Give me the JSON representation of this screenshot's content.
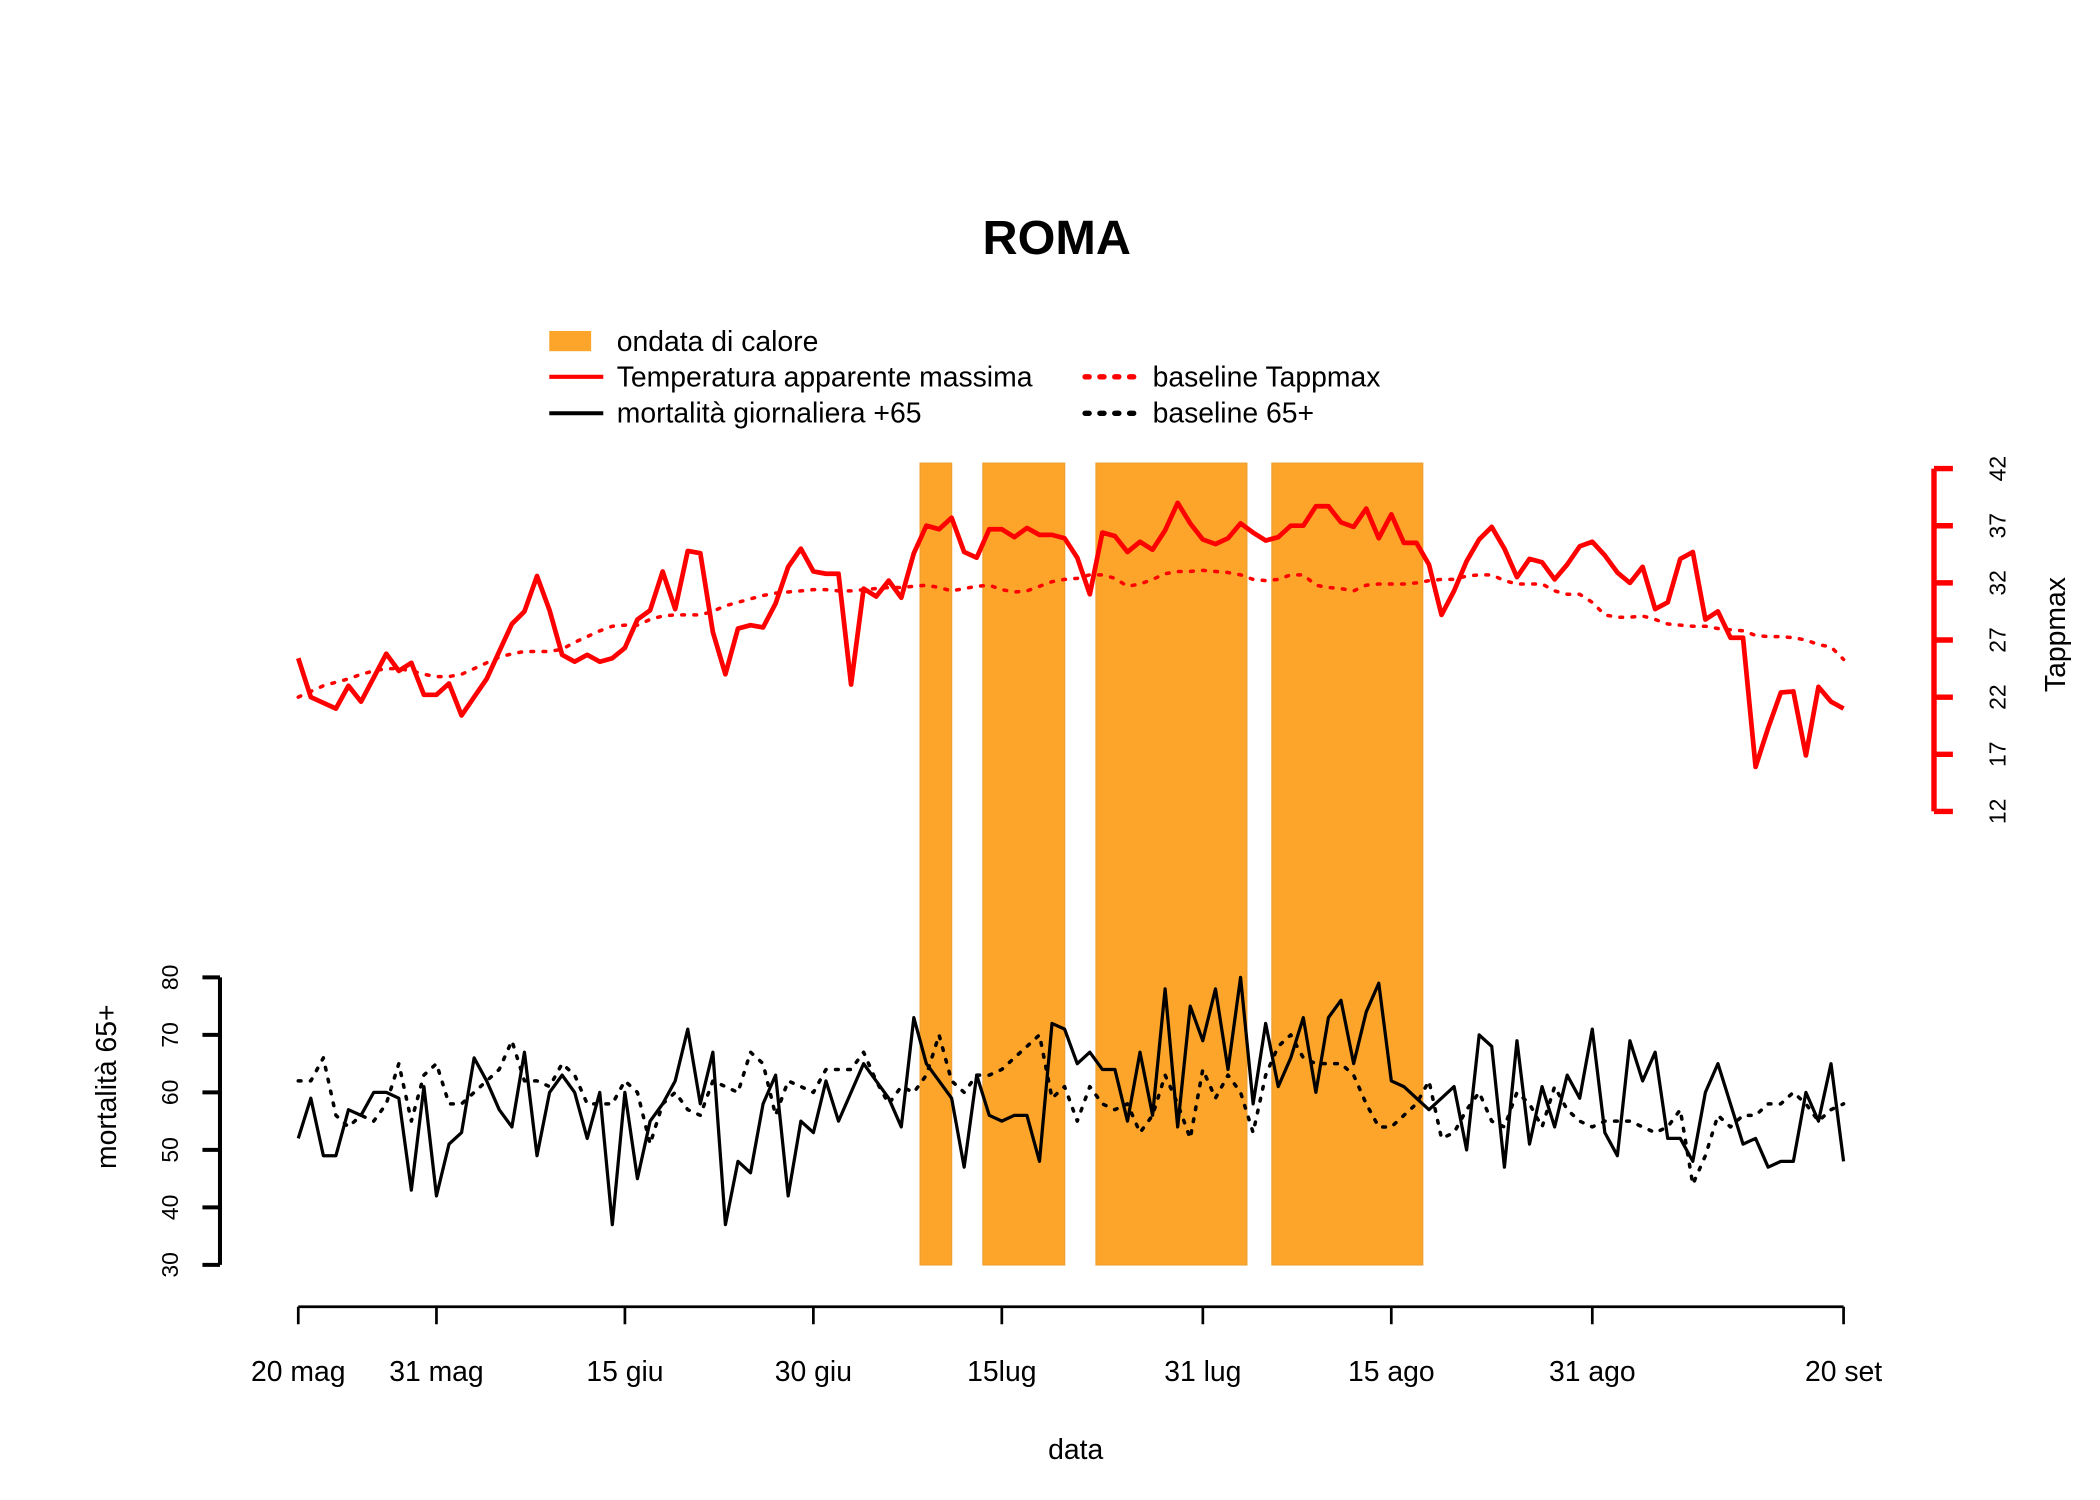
{
  "chart_data": {
    "type": "line",
    "title": "ROMA",
    "xlabel": "data",
    "ylabel_left": "mortalità 65+",
    "ylabel_right": "Tappmax",
    "x_unit": "days since 20 mag",
    "x_range": [
      0,
      123
    ],
    "x_ticks": [
      {
        "day": 0,
        "label": "20 mag"
      },
      {
        "day": 11,
        "label": "31 mag"
      },
      {
        "day": 26,
        "label": "15 giu"
      },
      {
        "day": 41,
        "label": "30 giu"
      },
      {
        "day": 56,
        "label": "15lug"
      },
      {
        "day": 72,
        "label": "31 lug"
      },
      {
        "day": 87,
        "label": "15 ago"
      },
      {
        "day": 103,
        "label": "31 ago"
      },
      {
        "day": 123,
        "label": "20 set"
      }
    ],
    "left_axis": {
      "range": [
        30,
        80
      ],
      "ticks": [
        "30",
        "40",
        "50",
        "60",
        "70",
        "80"
      ]
    },
    "right_axis": {
      "range": [
        12,
        42
      ],
      "ticks": [
        "12",
        "17",
        "22",
        "27",
        "32",
        "37",
        "42"
      ],
      "color": "#ff0000"
    },
    "legend": {
      "position": "top-center",
      "items": [
        {
          "label": "ondata di calore",
          "kind": "fill",
          "color": "#fca52a"
        },
        {
          "label": "Temperatura apparente massima",
          "kind": "solid",
          "color": "#ff0000"
        },
        {
          "label": "mortalità giornaliera +65",
          "kind": "solid",
          "color": "#000000"
        },
        {
          "label": "baseline Tappmax",
          "kind": "dotted",
          "color": "#ff0000"
        },
        {
          "label": "baseline 65+",
          "kind": "dotted",
          "color": "#000000"
        }
      ]
    },
    "heatwaves": [
      [
        49.5,
        52
      ],
      [
        54.5,
        61
      ],
      [
        63.5,
        75.5
      ],
      [
        77.5,
        89.5
      ]
    ],
    "heatwave_color": "#fca52a",
    "series": [
      {
        "name": "Temperatura apparente massima",
        "axis": "right",
        "style": "solid",
        "color": "#ff0000",
        "values": [
          25.4,
          22,
          21.5,
          21,
          23,
          21.6,
          23.7,
          25.8,
          24.3,
          25,
          22.2,
          22.2,
          23.2,
          20.4,
          22,
          23.6,
          26,
          28.4,
          29.5,
          32.6,
          29.6,
          25.7,
          25.1,
          25.7,
          25.1,
          25.4,
          26.3,
          28.8,
          29.6,
          33,
          29.7,
          34.8,
          34.6,
          27.7,
          24,
          28,
          28.3,
          28.1,
          30.2,
          33.4,
          35,
          33,
          32.8,
          32.8,
          23.1,
          31.5,
          30.8,
          32.2,
          30.7,
          34.6,
          37,
          36.7,
          37.7,
          34.7,
          34.2,
          36.7,
          36.7,
          36,
          36.8,
          36.2,
          36.2,
          35.9,
          34.2,
          31,
          36.4,
          36.1,
          34.7,
          35.6,
          34.9,
          36.6,
          39,
          37.2,
          35.8,
          35.4,
          35.9,
          37.2,
          36.4,
          35.7,
          36,
          37,
          37,
          38.7,
          38.7,
          37.3,
          36.9,
          38.5,
          35.9,
          38,
          35.5,
          35.5,
          33.6,
          29.2,
          31.3,
          33.9,
          35.8,
          36.9,
          35,
          32.5,
          34.1,
          33.8,
          32.3,
          33.6,
          35.2,
          35.6,
          34.4,
          32.9,
          32,
          33.4,
          29.7,
          30.3,
          34.1,
          34.7,
          28.8,
          29.5,
          27.2,
          27.2,
          15.9,
          19.3,
          22.4,
          22.5,
          16.9,
          22.9,
          21.6,
          21
        ]
      },
      {
        "name": "baseline Tappmax",
        "axis": "right",
        "style": "dotted",
        "color": "#ff0000",
        "values": [
          22,
          22.5,
          23,
          23.3,
          23.6,
          24,
          24.3,
          24.5,
          24.5,
          24.3,
          24,
          23.8,
          23.8,
          24,
          24.5,
          25,
          25.5,
          25.8,
          26,
          26,
          26,
          26.2,
          26.8,
          27.3,
          27.8,
          28.2,
          28.3,
          28.3,
          28.8,
          29.1,
          29.2,
          29.2,
          29.2,
          29.5,
          30,
          30.3,
          30.6,
          30.9,
          31.1,
          31.2,
          31.3,
          31.4,
          31.4,
          31.3,
          31.3,
          31.4,
          31.5,
          31.6,
          31.6,
          31.7,
          31.8,
          31.6,
          31.3,
          31.5,
          31.7,
          31.8,
          31.4,
          31.2,
          31.3,
          31.7,
          32.1,
          32.3,
          32.4,
          32.7,
          32.7,
          32.4,
          31.7,
          31.9,
          32.3,
          32.8,
          33,
          33,
          33.1,
          33,
          32.9,
          32.7,
          32.3,
          32.2,
          32.3,
          32.7,
          32.7,
          31.8,
          31.6,
          31.5,
          31.3,
          31.8,
          31.9,
          31.9,
          31.9,
          32,
          32.2,
          32.3,
          32.3,
          32.6,
          32.7,
          32.7,
          32.2,
          31.9,
          31.9,
          31.9,
          31.3,
          31,
          31,
          30.3,
          29.2,
          29,
          29,
          29.1,
          28.8,
          28.4,
          28.3,
          28.2,
          28.2,
          28,
          27.9,
          27.8,
          27.4,
          27.3,
          27.3,
          27.2,
          27,
          26.6,
          26.4,
          25.3
        ]
      },
      {
        "name": "mortalità giornaliera +65",
        "axis": "left",
        "style": "solid",
        "color": "#000000",
        "values": [
          52,
          59,
          49,
          49,
          57,
          56,
          60,
          60,
          59,
          43,
          61,
          42,
          51,
          53,
          66,
          62,
          57,
          54,
          67,
          49,
          60,
          63,
          60,
          52,
          60,
          37,
          60,
          45,
          55,
          58,
          62,
          71,
          58,
          67,
          37,
          48,
          46,
          58,
          63,
          42,
          55,
          53,
          62,
          55,
          60,
          65,
          62,
          59,
          54,
          73,
          65,
          62,
          59,
          47,
          63,
          56,
          55,
          56,
          56,
          48,
          72,
          71,
          65,
          67,
          64,
          64,
          55,
          67,
          56,
          78,
          54,
          75,
          69,
          78,
          64,
          80,
          58,
          72,
          61,
          66,
          73,
          60,
          73,
          76,
          65,
          74,
          79,
          62,
          61,
          59,
          57,
          59,
          61,
          50,
          70,
          68,
          47,
          69,
          51,
          61,
          54,
          63,
          59,
          71,
          53,
          49,
          69,
          62,
          67,
          52,
          52,
          48,
          60,
          65,
          58,
          51,
          52,
          47,
          48,
          48,
          60,
          55,
          65,
          48
        ]
      },
      {
        "name": "baseline 65+",
        "axis": "left",
        "style": "dotted",
        "color": "#000000",
        "values": [
          62,
          62,
          66,
          56,
          54,
          56,
          55,
          58,
          65,
          55,
          63,
          65,
          58,
          58,
          60,
          62,
          64,
          69,
          62,
          62,
          61,
          65,
          63,
          58,
          58,
          58,
          62,
          60,
          51,
          58,
          60,
          57,
          56,
          62,
          61,
          60,
          67,
          65,
          56,
          62,
          61,
          60,
          64,
          64,
          64,
          67,
          62,
          58,
          61,
          60,
          63,
          70,
          62,
          60,
          63,
          63,
          64,
          66,
          68,
          70,
          59,
          61,
          55,
          61,
          58,
          57,
          58,
          53,
          56,
          63,
          58,
          52,
          64,
          59,
          63,
          60,
          53,
          63,
          68,
          70,
          66,
          65,
          65,
          65,
          63,
          58,
          54,
          54,
          56,
          58,
          62,
          52,
          53,
          57,
          60,
          55,
          54,
          60,
          58,
          54,
          61,
          57,
          55,
          54,
          55,
          55,
          55,
          54,
          53,
          54,
          57,
          44,
          49,
          56,
          54,
          56,
          56,
          58,
          58,
          60,
          58,
          55,
          57,
          58
        ]
      }
    ]
  }
}
